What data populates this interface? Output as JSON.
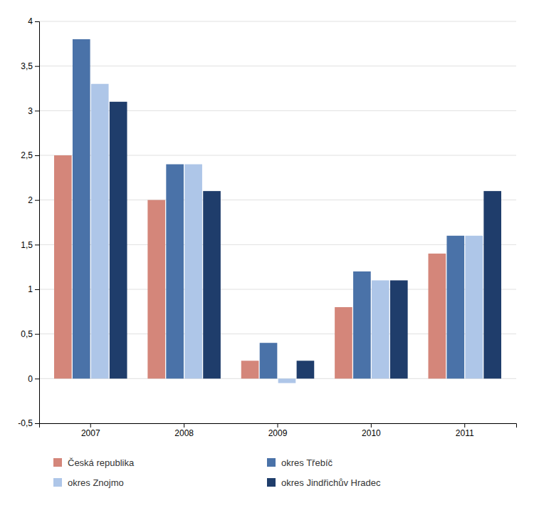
{
  "chart_data": {
    "type": "bar",
    "categories": [
      "2007",
      "2008",
      "2009",
      "2010",
      "2011"
    ],
    "series": [
      {
        "name": "Česká republika",
        "color": "#d4867a",
        "values": [
          2.5,
          2.0,
          0.2,
          0.8,
          1.4
        ]
      },
      {
        "name": "okres Třebíč",
        "color": "#4a72a8",
        "values": [
          3.8,
          2.4,
          0.4,
          1.2,
          1.6
        ]
      },
      {
        "name": "okres Znojmo",
        "color": "#aec6e8",
        "values": [
          3.3,
          2.4,
          -0.05,
          1.1,
          1.6
        ]
      },
      {
        "name": "okres Jindřichův Hradec",
        "color": "#1f3d6b",
        "values": [
          3.1,
          2.1,
          0.2,
          1.1,
          2.1
        ]
      }
    ],
    "ylim": [
      -0.5,
      4.0
    ],
    "yticks": [
      {
        "value": -0.5,
        "label": "-0,5"
      },
      0,
      {
        "value": 0.5,
        "label": "0,5"
      },
      1,
      {
        "value": 1.5,
        "label": "1,5"
      },
      2,
      {
        "value": 2.5,
        "label": "2,5"
      },
      3,
      {
        "value": 3.5,
        "label": "3,5"
      },
      4
    ],
    "grid": true,
    "legend": "bottom"
  }
}
